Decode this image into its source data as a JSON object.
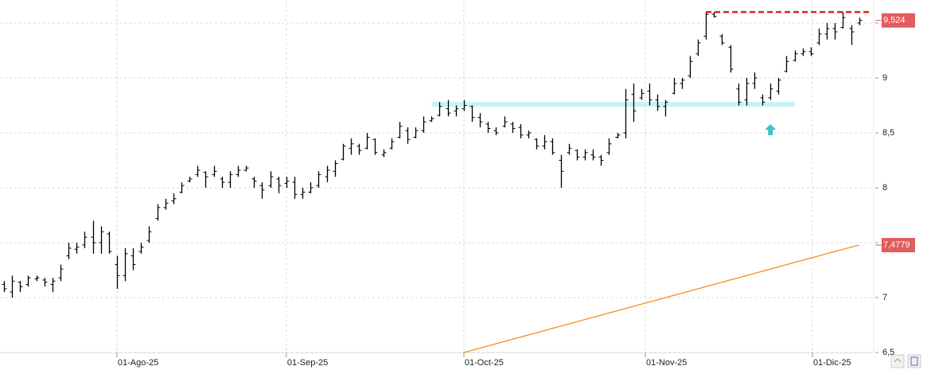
{
  "chart_data": {
    "type": "ohlc",
    "color": "#000000",
    "grid": true,
    "xlim": [
      -0.49,
      107.8
    ],
    "ylim": [
      6.5,
      9.71
    ],
    "xticks": [
      {
        "value": 14,
        "label": "01-Ago-25"
      },
      {
        "value": 35,
        "label": "01-Sep-25"
      },
      {
        "value": 57,
        "label": "01-Oct-25"
      },
      {
        "value": 79.5,
        "label": "01-Nov-25"
      },
      {
        "value": 100.2,
        "label": "01-Dic-25"
      }
    ],
    "yticks": [
      {
        "value": 6.5,
        "label": "6,5"
      },
      7,
      {
        "value": 7.5,
        "label": "7,5"
      },
      8,
      {
        "value": 8.5,
        "label": "8,5"
      },
      9,
      {
        "value": 9.5,
        "label": "9,5"
      }
    ],
    "open": [
      7.12,
      7.05,
      7.14,
      7.12,
      7.17,
      7.16,
      7.12,
      7.18,
      7.38,
      7.44,
      7.48,
      7.55,
      7.5,
      7.58,
      7.3,
      7.2,
      7.38,
      7.42,
      7.52,
      7.72,
      7.82,
      7.88,
      7.96,
      8.06,
      8.12,
      8.14,
      8.12,
      8.08,
      8.05,
      8.12,
      8.16,
      8.08,
      8.02,
      8.02,
      8.08,
      8.04,
      8.05,
      7.94,
      7.96,
      8.02,
      8.1,
      8.15,
      8.26,
      8.36,
      8.38,
      8.36,
      8.44,
      8.3,
      8.36,
      8.46,
      8.52,
      8.46,
      8.52,
      8.61,
      8.66,
      8.72,
      8.7,
      8.72,
      8.74,
      8.64,
      8.58,
      8.52,
      8.56,
      8.58,
      8.55,
      8.48,
      8.44,
      8.38,
      8.42,
      8.25,
      8.32,
      8.34,
      8.28,
      8.3,
      8.28,
      8.32,
      8.46,
      8.5,
      8.85,
      8.82,
      8.88,
      8.8,
      8.74,
      8.86,
      8.95,
      9.02,
      9.22,
      9.38,
      9.58,
      9.38,
      9.28,
      8.9,
      8.8,
      8.95,
      8.82,
      8.82,
      8.88,
      9.06,
      9.16,
      9.22,
      9.24,
      9.32,
      9.4,
      9.45,
      9.46,
      9.45,
      9.5
    ],
    "high": [
      7.15,
      7.2,
      7.15,
      7.2,
      7.2,
      7.18,
      7.18,
      7.3,
      7.5,
      7.5,
      7.6,
      7.7,
      7.65,
      7.6,
      7.38,
      7.45,
      7.45,
      7.5,
      7.65,
      7.85,
      7.9,
      7.95,
      8.05,
      8.1,
      8.2,
      8.15,
      8.2,
      8.1,
      8.15,
      8.2,
      8.2,
      8.1,
      8.05,
      8.15,
      8.1,
      8.1,
      8.1,
      8.0,
      8.05,
      8.15,
      8.2,
      8.25,
      8.4,
      8.45,
      8.4,
      8.5,
      8.45,
      8.35,
      8.45,
      8.6,
      8.55,
      8.55,
      8.65,
      8.65,
      8.78,
      8.8,
      8.75,
      8.8,
      8.75,
      8.68,
      8.6,
      8.55,
      8.65,
      8.6,
      8.58,
      8.52,
      8.45,
      8.48,
      8.45,
      8.3,
      8.4,
      8.35,
      8.35,
      8.35,
      8.3,
      8.45,
      8.5,
      8.9,
      8.95,
      8.9,
      8.95,
      8.85,
      8.8,
      9.0,
      9.0,
      9.2,
      9.35,
      9.6,
      9.6,
      9.4,
      9.3,
      8.95,
      9.0,
      9.05,
      8.85,
      8.95,
      9.0,
      9.2,
      9.25,
      9.27,
      9.28,
      9.45,
      9.5,
      9.5,
      9.6,
      9.48,
      9.55
    ],
    "low": [
      7.05,
      7.0,
      7.05,
      7.1,
      7.15,
      7.1,
      7.05,
      7.15,
      7.35,
      7.4,
      7.45,
      7.4,
      7.4,
      7.4,
      7.08,
      7.15,
      7.25,
      7.4,
      7.5,
      7.7,
      7.8,
      7.85,
      7.95,
      8.05,
      8.1,
      8.0,
      8.1,
      8.0,
      8.0,
      8.1,
      8.15,
      8.0,
      7.9,
      8.0,
      7.95,
      8.0,
      7.9,
      7.9,
      7.95,
      8.0,
      8.05,
      8.1,
      8.25,
      8.3,
      8.3,
      8.35,
      8.3,
      8.28,
      8.35,
      8.45,
      8.4,
      8.45,
      8.5,
      8.6,
      8.65,
      8.65,
      8.65,
      8.7,
      8.6,
      8.55,
      8.5,
      8.48,
      8.55,
      8.5,
      8.45,
      8.45,
      8.35,
      8.35,
      8.3,
      8.0,
      8.3,
      8.25,
      8.25,
      8.25,
      8.2,
      8.3,
      8.45,
      8.45,
      8.6,
      8.8,
      8.75,
      8.7,
      8.65,
      8.85,
      8.9,
      9.0,
      9.2,
      9.35,
      9.55,
      9.3,
      9.05,
      8.75,
      8.75,
      8.9,
      8.75,
      8.8,
      8.85,
      9.05,
      9.15,
      9.2,
      9.2,
      9.3,
      9.35,
      9.35,
      9.45,
      9.3,
      9.48
    ],
    "close": [
      7.08,
      7.15,
      7.1,
      7.18,
      7.18,
      7.14,
      7.15,
      7.26,
      7.45,
      7.46,
      7.55,
      7.5,
      7.6,
      7.42,
      7.2,
      7.4,
      7.3,
      7.46,
      7.6,
      7.82,
      7.86,
      7.9,
      8.02,
      8.08,
      8.16,
      8.1,
      8.15,
      8.05,
      8.12,
      8.16,
      8.18,
      8.06,
      7.98,
      8.1,
      8.02,
      8.06,
      7.94,
      7.96,
      8.0,
      8.12,
      8.16,
      8.22,
      8.38,
      8.4,
      8.34,
      8.46,
      8.32,
      8.32,
      8.42,
      8.56,
      8.44,
      8.52,
      8.6,
      8.63,
      8.74,
      8.68,
      8.72,
      8.75,
      8.64,
      8.6,
      8.54,
      8.5,
      8.6,
      8.54,
      8.48,
      8.5,
      8.38,
      8.42,
      8.32,
      8.15,
      8.36,
      8.28,
      8.32,
      8.28,
      8.25,
      8.4,
      8.48,
      8.8,
      8.7,
      8.86,
      8.8,
      8.74,
      8.78,
      8.95,
      8.98,
      9.15,
      9.32,
      9.58,
      9.56,
      9.32,
      9.08,
      8.78,
      8.95,
      9.0,
      8.78,
      8.9,
      8.98,
      9.15,
      9.22,
      9.24,
      9.22,
      9.4,
      9.45,
      9.42,
      9.55,
      9.42,
      9.524
    ],
    "overlays": [
      {
        "color": "#f0901e",
        "values": [
          null,
          null,
          null,
          null,
          null,
          null,
          null,
          null,
          null,
          null,
          null,
          null,
          null,
          null,
          null,
          null,
          null,
          null,
          null,
          null,
          null,
          null,
          null,
          null,
          null,
          null,
          null,
          null,
          null,
          null,
          null,
          null,
          null,
          null,
          null,
          null,
          null,
          null,
          null,
          null,
          null,
          null,
          null,
          null,
          null,
          null,
          null,
          null,
          null,
          null,
          null,
          null,
          null,
          null,
          null,
          null,
          null,
          6.5,
          6.52,
          6.54,
          6.56,
          6.58,
          6.6,
          6.62,
          6.64,
          6.66,
          6.68,
          6.7,
          6.72,
          6.74,
          6.76,
          6.78,
          6.8,
          6.82,
          6.84,
          6.86,
          6.88,
          6.9,
          6.92,
          6.94,
          6.96,
          6.98,
          7.0,
          7.02,
          7.04,
          7.06,
          7.08,
          7.1,
          7.12,
          7.14,
          7.16,
          7.18,
          7.2,
          7.22,
          7.24,
          7.26,
          7.28,
          7.3,
          7.32,
          7.34,
          7.36,
          7.38,
          7.4,
          7.42,
          7.44,
          7.46,
          7.4779
        ]
      }
    ],
    "levels": [
      {
        "value": 9.6,
        "from": 87,
        "to": 107.5,
        "color": "#e02020",
        "style": "dashed"
      },
      {
        "value": 8.76,
        "from": 53,
        "to": 98,
        "color": "#c4f4f7",
        "style": "band"
      }
    ],
    "arrow": {
      "x": 95,
      "y": 8.58,
      "color": "#3cc3c8"
    },
    "price_labels": [
      {
        "value": 9.524,
        "label": "9,524",
        "color": "#e35b5b"
      },
      {
        "value": 7.4779,
        "label": "7,4779",
        "color": "#e35b5b"
      }
    ]
  }
}
